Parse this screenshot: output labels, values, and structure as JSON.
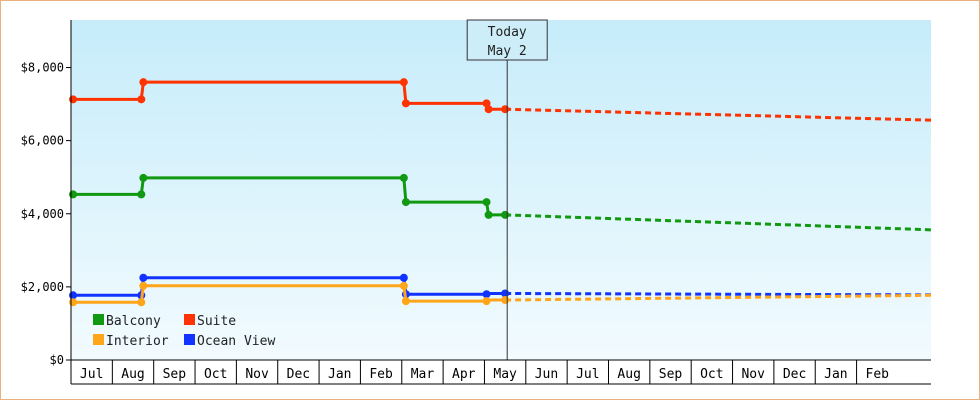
{
  "chart_data": {
    "type": "line",
    "step": true,
    "colors": {
      "Suite": "#ff3300",
      "Balcony": "#119911",
      "Ocean View": "#1133ff",
      "Interior": "#ffa519",
      "background_top": "#c6ecfa",
      "background_bottom": "#f2fbfe",
      "frame": "#e8b27a"
    },
    "y_ticks": [
      "$0",
      "$2,000",
      "$4,000",
      "$6,000",
      "$8,000"
    ],
    "y_tick_values": [
      0,
      2000,
      4000,
      6000,
      8000
    ],
    "ylim": [
      0,
      9300
    ],
    "x_months": [
      "Jul",
      "Aug",
      "Sep",
      "Oct",
      "Nov",
      "Dec",
      "Jan",
      "Feb",
      "Mar",
      "Apr",
      "May",
      "Jun",
      "Jul",
      "Aug",
      "Sep",
      "Oct",
      "Nov",
      "Dec",
      "Jan",
      "Feb"
    ],
    "x_range_months": [
      -0.5,
      20.3
    ],
    "today": {
      "line1": "Today",
      "line2": "May 2",
      "x": 10.05
    },
    "legend": {
      "position": "bottom-left",
      "entries": [
        {
          "name": "Balcony",
          "color": "#119911"
        },
        {
          "name": "Suite",
          "color": "#ff3300"
        },
        {
          "name": "Interior",
          "color": "#ffa519"
        },
        {
          "name": "Ocean View",
          "color": "#1133ff"
        }
      ]
    },
    "series": [
      {
        "name": "Suite",
        "color": "#ff3300",
        "points": [
          [
            -0.45,
            7130
          ],
          [
            1.2,
            7130
          ],
          [
            1.25,
            7600
          ],
          [
            7.55,
            7600
          ],
          [
            7.6,
            7020
          ],
          [
            9.55,
            7020
          ],
          [
            9.6,
            6860
          ],
          [
            10.0,
            6860
          ]
        ],
        "markers": [
          [
            -0.45,
            7130
          ],
          [
            1.2,
            7130
          ],
          [
            1.25,
            7600
          ],
          [
            7.55,
            7600
          ],
          [
            7.6,
            7020
          ],
          [
            9.55,
            7020
          ],
          [
            9.6,
            6860
          ],
          [
            10.0,
            6860
          ]
        ],
        "forecast": [
          [
            10.0,
            6860
          ],
          [
            20.3,
            6560
          ]
        ]
      },
      {
        "name": "Balcony",
        "color": "#119911",
        "points": [
          [
            -0.45,
            4530
          ],
          [
            1.2,
            4530
          ],
          [
            1.25,
            4980
          ],
          [
            7.55,
            4980
          ],
          [
            7.6,
            4320
          ],
          [
            9.55,
            4320
          ],
          [
            9.6,
            3970
          ],
          [
            10.0,
            3970
          ]
        ],
        "markers": [
          [
            -0.45,
            4530
          ],
          [
            1.2,
            4530
          ],
          [
            1.25,
            4980
          ],
          [
            7.55,
            4980
          ],
          [
            7.6,
            4320
          ],
          [
            9.55,
            4320
          ],
          [
            9.6,
            3970
          ],
          [
            10.0,
            3970
          ]
        ],
        "forecast": [
          [
            10.0,
            3970
          ],
          [
            20.3,
            3560
          ]
        ]
      },
      {
        "name": "Ocean View",
        "color": "#1133ff",
        "points": [
          [
            -0.45,
            1770
          ],
          [
            1.2,
            1770
          ],
          [
            1.25,
            2250
          ],
          [
            7.55,
            2250
          ],
          [
            7.6,
            1800
          ],
          [
            9.55,
            1800
          ],
          [
            9.6,
            1820
          ],
          [
            10.0,
            1820
          ]
        ],
        "markers": [
          [
            -0.45,
            1770
          ],
          [
            1.2,
            1770
          ],
          [
            1.25,
            2250
          ],
          [
            7.55,
            2250
          ],
          [
            7.6,
            1800
          ],
          [
            9.55,
            1800
          ],
          [
            10.0,
            1820
          ]
        ],
        "forecast": [
          [
            10.0,
            1820
          ],
          [
            20.3,
            1780
          ]
        ]
      },
      {
        "name": "Interior",
        "color": "#ffa519",
        "points": [
          [
            -0.45,
            1580
          ],
          [
            1.2,
            1580
          ],
          [
            1.25,
            2030
          ],
          [
            7.55,
            2030
          ],
          [
            7.6,
            1610
          ],
          [
            9.55,
            1610
          ],
          [
            9.6,
            1640
          ],
          [
            10.0,
            1640
          ]
        ],
        "markers": [
          [
            -0.45,
            1580
          ],
          [
            1.2,
            1580
          ],
          [
            1.25,
            2030
          ],
          [
            7.55,
            2030
          ],
          [
            7.6,
            1610
          ],
          [
            9.55,
            1610
          ],
          [
            10.0,
            1640
          ]
        ],
        "forecast": [
          [
            10.0,
            1640
          ],
          [
            20.3,
            1770
          ]
        ]
      }
    ]
  }
}
